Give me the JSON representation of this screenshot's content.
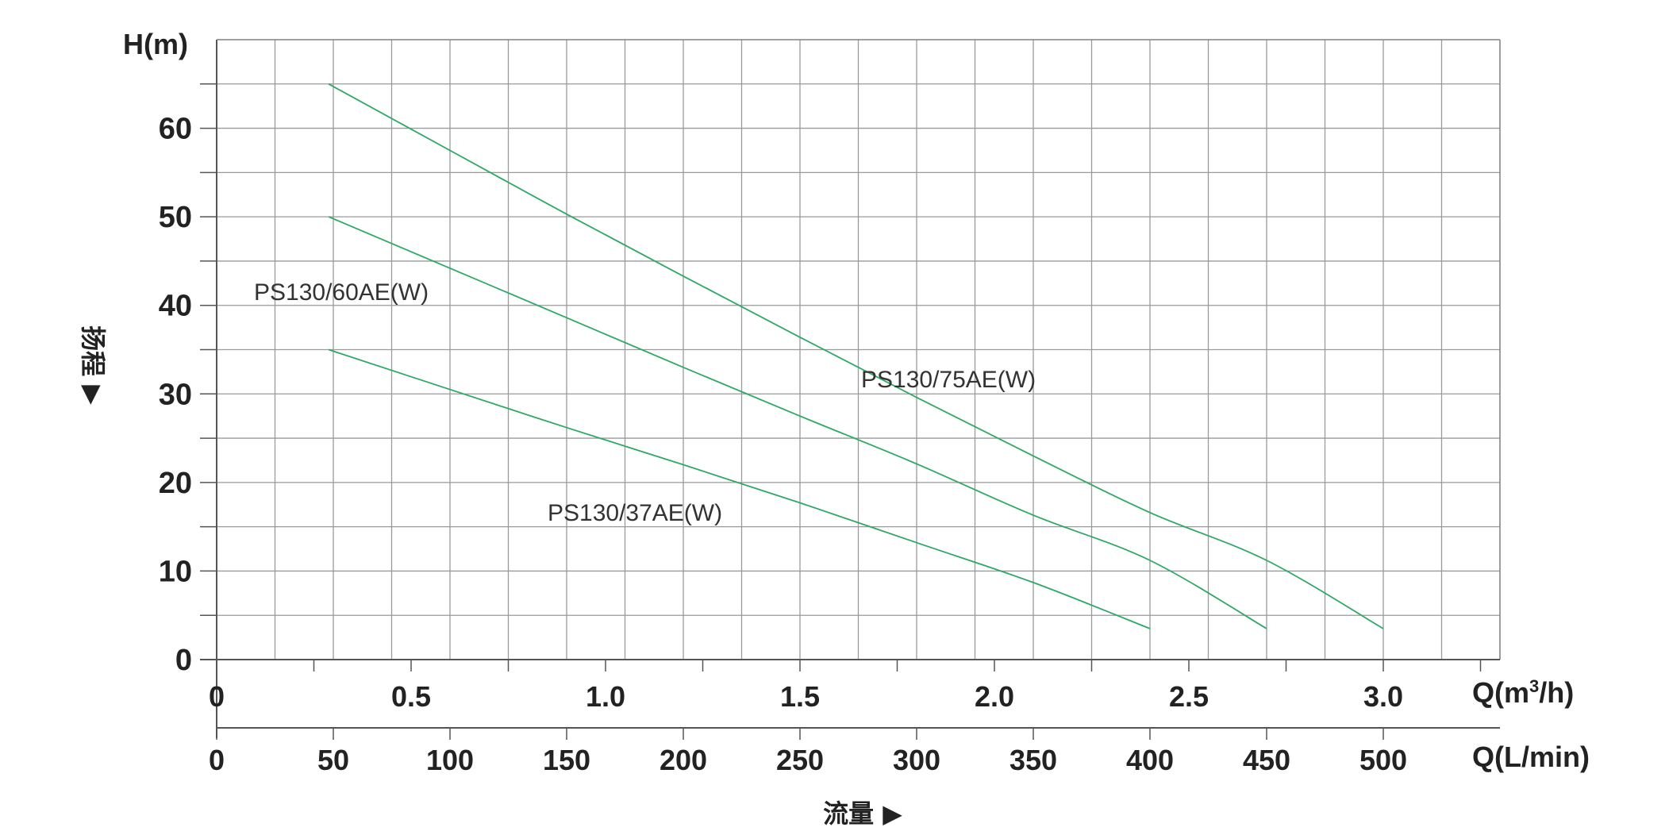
{
  "chart_data": {
    "type": "line",
    "title": "",
    "y_axis": {
      "label": "H(m)",
      "title": "扬程 ▶",
      "ylim": [
        0,
        70
      ],
      "ticks": [
        0,
        10,
        20,
        30,
        40,
        50,
        60
      ],
      "tick_labels": [
        "0",
        "10",
        "20",
        "30",
        "40",
        "50",
        "60"
      ]
    },
    "x_axis_flow_m3h": {
      "label_prefix": "Q(m",
      "label_sup": "3",
      "label_suffix": "/h)",
      "xlim": [
        0,
        3.3
      ],
      "ticks": [
        0,
        0.5,
        1.0,
        1.5,
        2.0,
        2.5,
        3.0
      ],
      "tick_labels": [
        "0",
        "0.5",
        "1.0",
        "1.5",
        "2.0",
        "2.5",
        "3.0"
      ]
    },
    "x_axis_flow_lmin": {
      "label": "Q(L/min)",
      "xlim": [
        0,
        550
      ],
      "ticks": [
        0,
        50,
        100,
        150,
        200,
        250,
        300,
        350,
        400,
        450,
        500
      ],
      "tick_labels": [
        "0",
        "50",
        "100",
        "150",
        "200",
        "250",
        "300",
        "350",
        "400",
        "450",
        "500"
      ]
    },
    "x_title": "流量 ▶",
    "grid": true,
    "line_color": "#2fa866",
    "series": [
      {
        "name": "PS130/75AE(W)",
        "x_lmin": [
          48,
          100,
          150,
          200,
          250,
          300,
          350,
          400,
          450,
          500
        ],
        "y": [
          65,
          57.5,
          50.3,
          43.3,
          36.4,
          29.6,
          23.0,
          16.6,
          11.2,
          3.5
        ]
      },
      {
        "name": "PS130/60AE(W)",
        "x_lmin": [
          48,
          100,
          150,
          200,
          250,
          300,
          350,
          400,
          450
        ],
        "y": [
          50,
          44.2,
          38.6,
          33.0,
          27.5,
          22.1,
          16.3,
          11.2,
          3.5
        ]
      },
      {
        "name": "PS130/37AE(W)",
        "x_lmin": [
          48,
          100,
          150,
          200,
          250,
          300,
          350,
          400
        ],
        "y": [
          35,
          30.5,
          26.2,
          22.0,
          17.7,
          13.2,
          8.7,
          3.5
        ]
      }
    ]
  }
}
